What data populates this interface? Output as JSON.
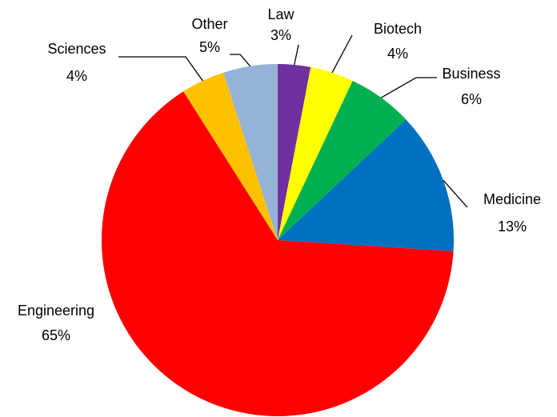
{
  "chart_data": {
    "type": "pie",
    "categories": [
      "Law",
      "Biotech",
      "Business",
      "Medicine",
      "Engineering",
      "Sciences",
      "Other"
    ],
    "values": [
      3,
      4,
      6,
      13,
      65,
      4,
      5
    ],
    "value_labels": [
      "3%",
      "4%",
      "6%",
      "13%",
      "65%",
      "4%",
      "5%"
    ],
    "colors": [
      "#7030a0",
      "#ffff00",
      "#00b050",
      "#0070c0",
      "#ff0000",
      "#ffc000",
      "#95b3d7"
    ]
  }
}
